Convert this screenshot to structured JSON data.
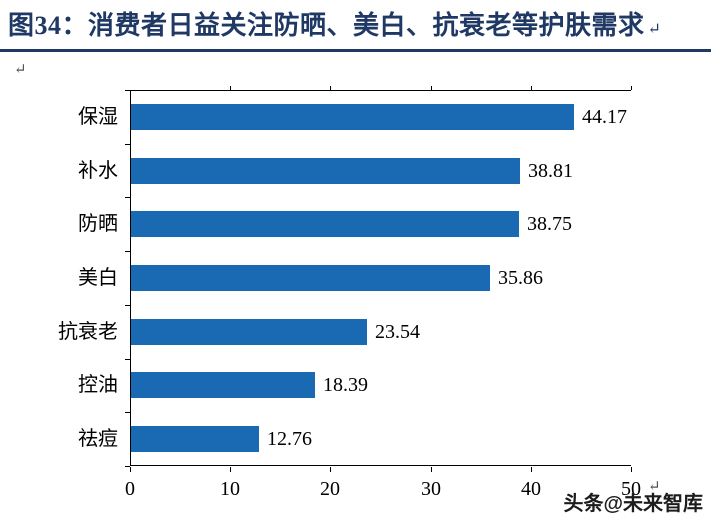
{
  "header": {
    "title": "图34：消费者日益关注防晒、美白、抗衰老等护肤需求",
    "paragraph_mark": "↵"
  },
  "body_marks": {
    "left_paragraph_mark": "↵",
    "axis_end_paragraph_mark": "↵"
  },
  "watermark": {
    "text": "头条@未来智库"
  },
  "colors": {
    "title": "#1f3864",
    "divider": "#1f3864",
    "bar": "#1a6ab3",
    "axis": "#000000",
    "background": "#ffffff"
  },
  "chart_data": {
    "type": "bar",
    "orientation": "horizontal",
    "title": "",
    "xlabel": "",
    "ylabel": "",
    "categories": [
      "保湿",
      "补水",
      "防晒",
      "美白",
      "抗衰老",
      "控油",
      "祛痘"
    ],
    "values": [
      44.17,
      38.81,
      38.75,
      35.86,
      23.54,
      18.39,
      12.76
    ],
    "value_labels": [
      "44.17",
      "38.81",
      "38.75",
      "35.86",
      "23.54",
      "18.39",
      "12.76"
    ],
    "xlim": [
      0,
      50
    ],
    "x_ticks": [
      0,
      10,
      20,
      30,
      40,
      50
    ],
    "grid": false,
    "legend": false,
    "bar_color": "#1a6ab3"
  }
}
